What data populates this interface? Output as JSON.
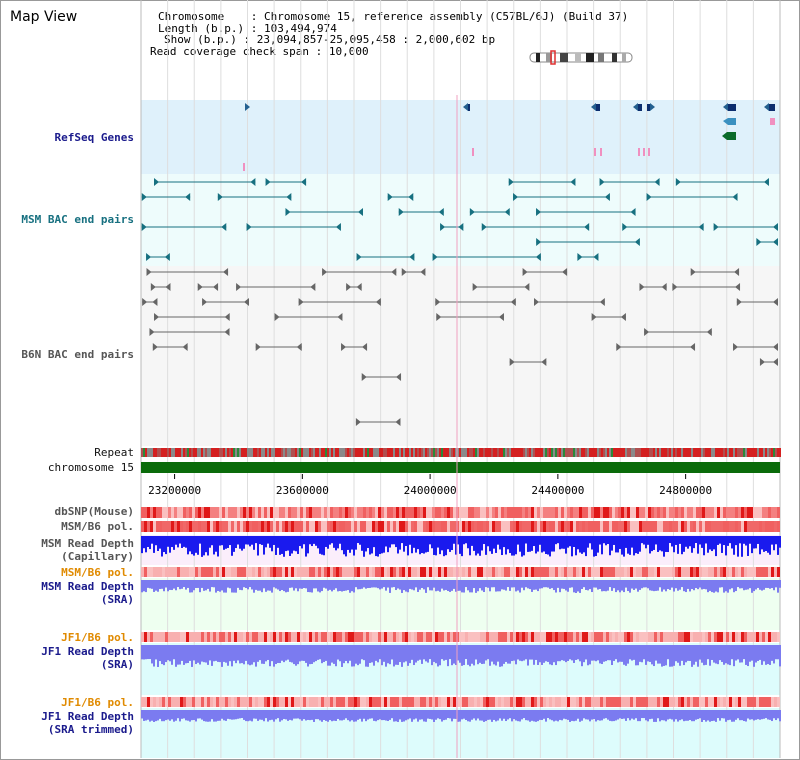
{
  "page": {
    "title": "Map View"
  },
  "header": {
    "chromosome_label": "Chromosome",
    "chromosome_value": "Chromosome 15, reference assembly (C57BL/6J) (Build 37)",
    "length_label": "Length (b.p.)",
    "length_value": "103,494,974",
    "show_label": "Show (b.p.)",
    "show_value": "23,094,857-25,095,458 : 2,000,602 bp",
    "coverage_label": "Read coverage check span",
    "coverage_value": "10,000"
  },
  "tracks": {
    "refseq": "RefSeq Genes",
    "msm_bac": "MSM BAC end pairs",
    "b6n_bac": "B6N BAC end pairs",
    "repeat": "Repeat",
    "chromosome": "chromosome 15",
    "dbsnp": "dbSNP(Mouse)",
    "msm_b6_pol": "MSM/B6 pol.",
    "msm_read_depth_cap_1": "MSM Read Depth",
    "msm_read_depth_cap_2": "(Capillary)",
    "msm_b6_pol_2": "MSM/B6 pol.",
    "msm_read_depth_sra_1": "MSM Read Depth",
    "msm_read_depth_sra_2": "(SRA)",
    "jf1_b6_pol": "JF1/B6 pol.",
    "jf1_read_depth_sra_1": "JF1 Read Depth",
    "jf1_read_depth_sra_2": "(SRA)",
    "jf1_b6_pol_2": "JF1/B6 pol.",
    "jf1_read_depth_trim_1": "JF1 Read Depth",
    "jf1_read_depth_trim_2": "(SRA trimmed)"
  },
  "axis": {
    "range_bp": [
      23094857,
      25095458
    ],
    "ticks": [
      "23200000",
      "23600000",
      "24000000",
      "24400000",
      "24800000"
    ],
    "tick_values": [
      23200000,
      23600000,
      24000000,
      24400000,
      24800000
    ]
  },
  "colors": {
    "refseq_bg": "#dff1fb",
    "bac_bg": "#eefcfc",
    "chromosome_bar": "#0a6b0a",
    "msm_bac_line": "#177080",
    "b6n_bac_line": "#666666",
    "read_depth_blue": "#1a1aee",
    "read_depth_violet": "#7b7bf0",
    "sra_bg": "#eefff0",
    "jf1_bg": "#ddfcfc"
  }
}
